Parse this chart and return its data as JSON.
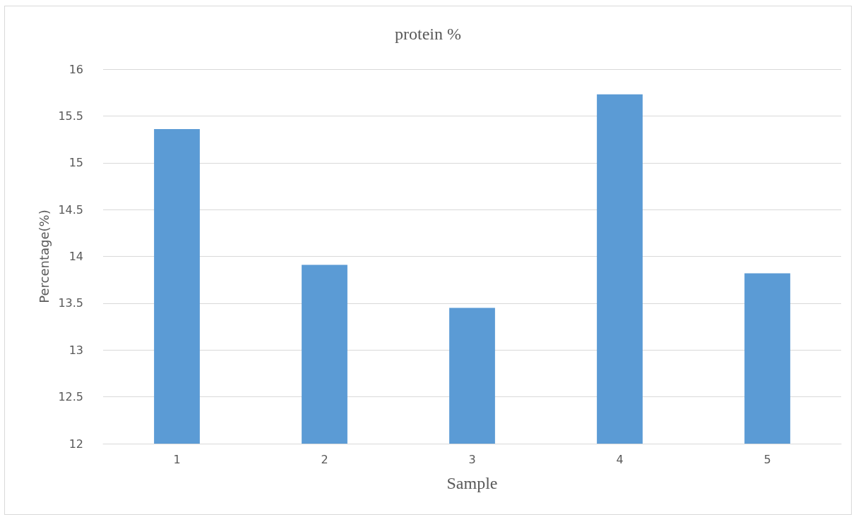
{
  "chart_data": {
    "type": "bar",
    "title": "protein %",
    "xlabel": "Sample",
    "ylabel": "Percentage(%)",
    "categories": [
      "1",
      "2",
      "3",
      "4",
      "5"
    ],
    "values": [
      15.36,
      13.91,
      13.45,
      15.73,
      13.82
    ],
    "color": "#5b9bd5",
    "ylim": [
      12,
      16
    ],
    "yticks": [
      12,
      12.5,
      13,
      13.5,
      14,
      14.5,
      15,
      15.5,
      16
    ],
    "grid": "y"
  }
}
